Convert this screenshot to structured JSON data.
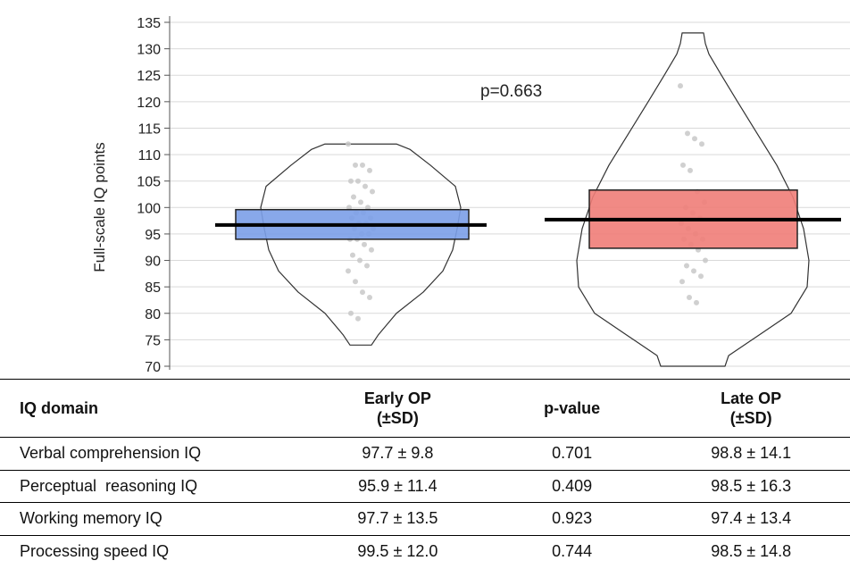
{
  "chart_data": {
    "type": "violin",
    "ylabel": "Full-scale IQ points",
    "ylim": [
      70,
      135
    ],
    "y_ticks": [
      70,
      75,
      80,
      85,
      90,
      95,
      100,
      105,
      110,
      115,
      120,
      125,
      130,
      135
    ],
    "grid": true,
    "annotation": "p=0.663",
    "colors": {
      "early_box": "#7b9ee8",
      "late_box": "#ef7d78",
      "mean_line": "#000000",
      "violin_outline": "#333333",
      "points": "#c8c8c8"
    },
    "groups": [
      {
        "key": "early",
        "mean": 96.7,
        "box_low": 94.0,
        "box_high": 99.6,
        "violin_min": 74.0,
        "violin_max": 112.0,
        "points": [
          112,
          108,
          108,
          107,
          105,
          105,
          104,
          103,
          102,
          101,
          100,
          100,
          99,
          99,
          98,
          98,
          97,
          97,
          96,
          96,
          95,
          95,
          94,
          94,
          93,
          92,
          91,
          90,
          89,
          88,
          86,
          84,
          83,
          80,
          79
        ]
      },
      {
        "key": "late",
        "mean": 97.7,
        "box_low": 92.3,
        "box_high": 103.3,
        "violin_min": 70.0,
        "violin_max": 133.0,
        "points": [
          123,
          114,
          113,
          112,
          108,
          107,
          103,
          101,
          100,
          99,
          98,
          97,
          96,
          95,
          94,
          94,
          93,
          92,
          90,
          89,
          88,
          87,
          86,
          83,
          82
        ]
      }
    ]
  },
  "table": {
    "headers": {
      "domain": "IQ domain",
      "early_line1": "Early OP",
      "early_line2": "(±SD)",
      "pvalue": "p-value",
      "late_line1": "Late OP",
      "late_line2": "(±SD)"
    },
    "rows": [
      {
        "domain": "Verbal comprehension IQ",
        "early": "97.7 ± 9.8",
        "p": "0.701",
        "late": "98.8 ± 14.1"
      },
      {
        "domain": "Perceptual  reasoning IQ",
        "early": "95.9 ± 11.4",
        "p": "0.409",
        "late": "98.5 ± 16.3"
      },
      {
        "domain": "Working memory IQ",
        "early": "97.7 ± 13.5",
        "p": "0.923",
        "late": "97.4 ± 13.4"
      },
      {
        "domain": "Processing speed IQ",
        "early": "99.5 ± 12.0",
        "p": "0.744",
        "late": "98.5 ± 14.8"
      }
    ]
  }
}
